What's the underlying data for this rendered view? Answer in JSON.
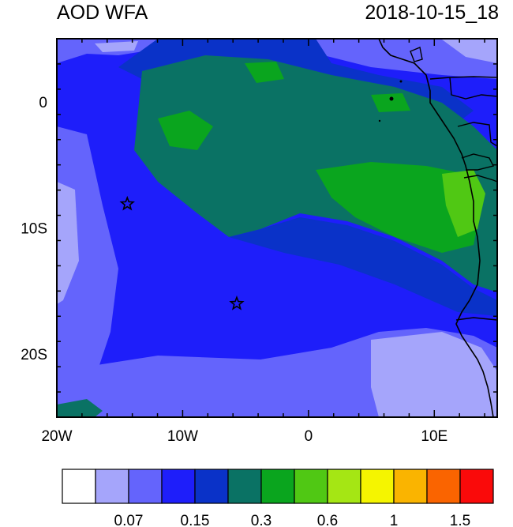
{
  "title": "AOD WFA",
  "datetime": "2018-10-15_18",
  "axes": {
    "lon_ticks": [
      {
        "value": -20,
        "label": "20W"
      },
      {
        "value": -10,
        "label": "10W"
      },
      {
        "value": 0,
        "label": "0"
      },
      {
        "value": 10,
        "label": "10E"
      }
    ],
    "lat_ticks": [
      {
        "value": 0,
        "label": "0"
      },
      {
        "value": -10,
        "label": "10S"
      },
      {
        "value": -20,
        "label": "20S"
      }
    ],
    "lon_range": [
      -20,
      15
    ],
    "lat_range": [
      -25,
      5
    ]
  },
  "markers": [
    {
      "name": "star-marker-1",
      "lon": -14.4,
      "lat": -8.1
    },
    {
      "name": "star-marker-2",
      "lon": -5.7,
      "lat": -16.0
    }
  ],
  "colorbar": {
    "colors": [
      "#ffffff",
      "#a5a5fb",
      "#6464fc",
      "#1e1efa",
      "#0a32c8",
      "#0a7264",
      "#0aa51e",
      "#50c814",
      "#a5e614",
      "#f5f500",
      "#fab400",
      "#fa6400",
      "#fa0a0a"
    ],
    "labels": [
      {
        "index": 2,
        "text": "0.07"
      },
      {
        "index": 4,
        "text": "0.15"
      },
      {
        "index": 6,
        "text": "0.3"
      },
      {
        "index": 8,
        "text": "0.6"
      },
      {
        "index": 10,
        "text": "1"
      },
      {
        "index": 12,
        "text": "1.5"
      }
    ]
  }
}
